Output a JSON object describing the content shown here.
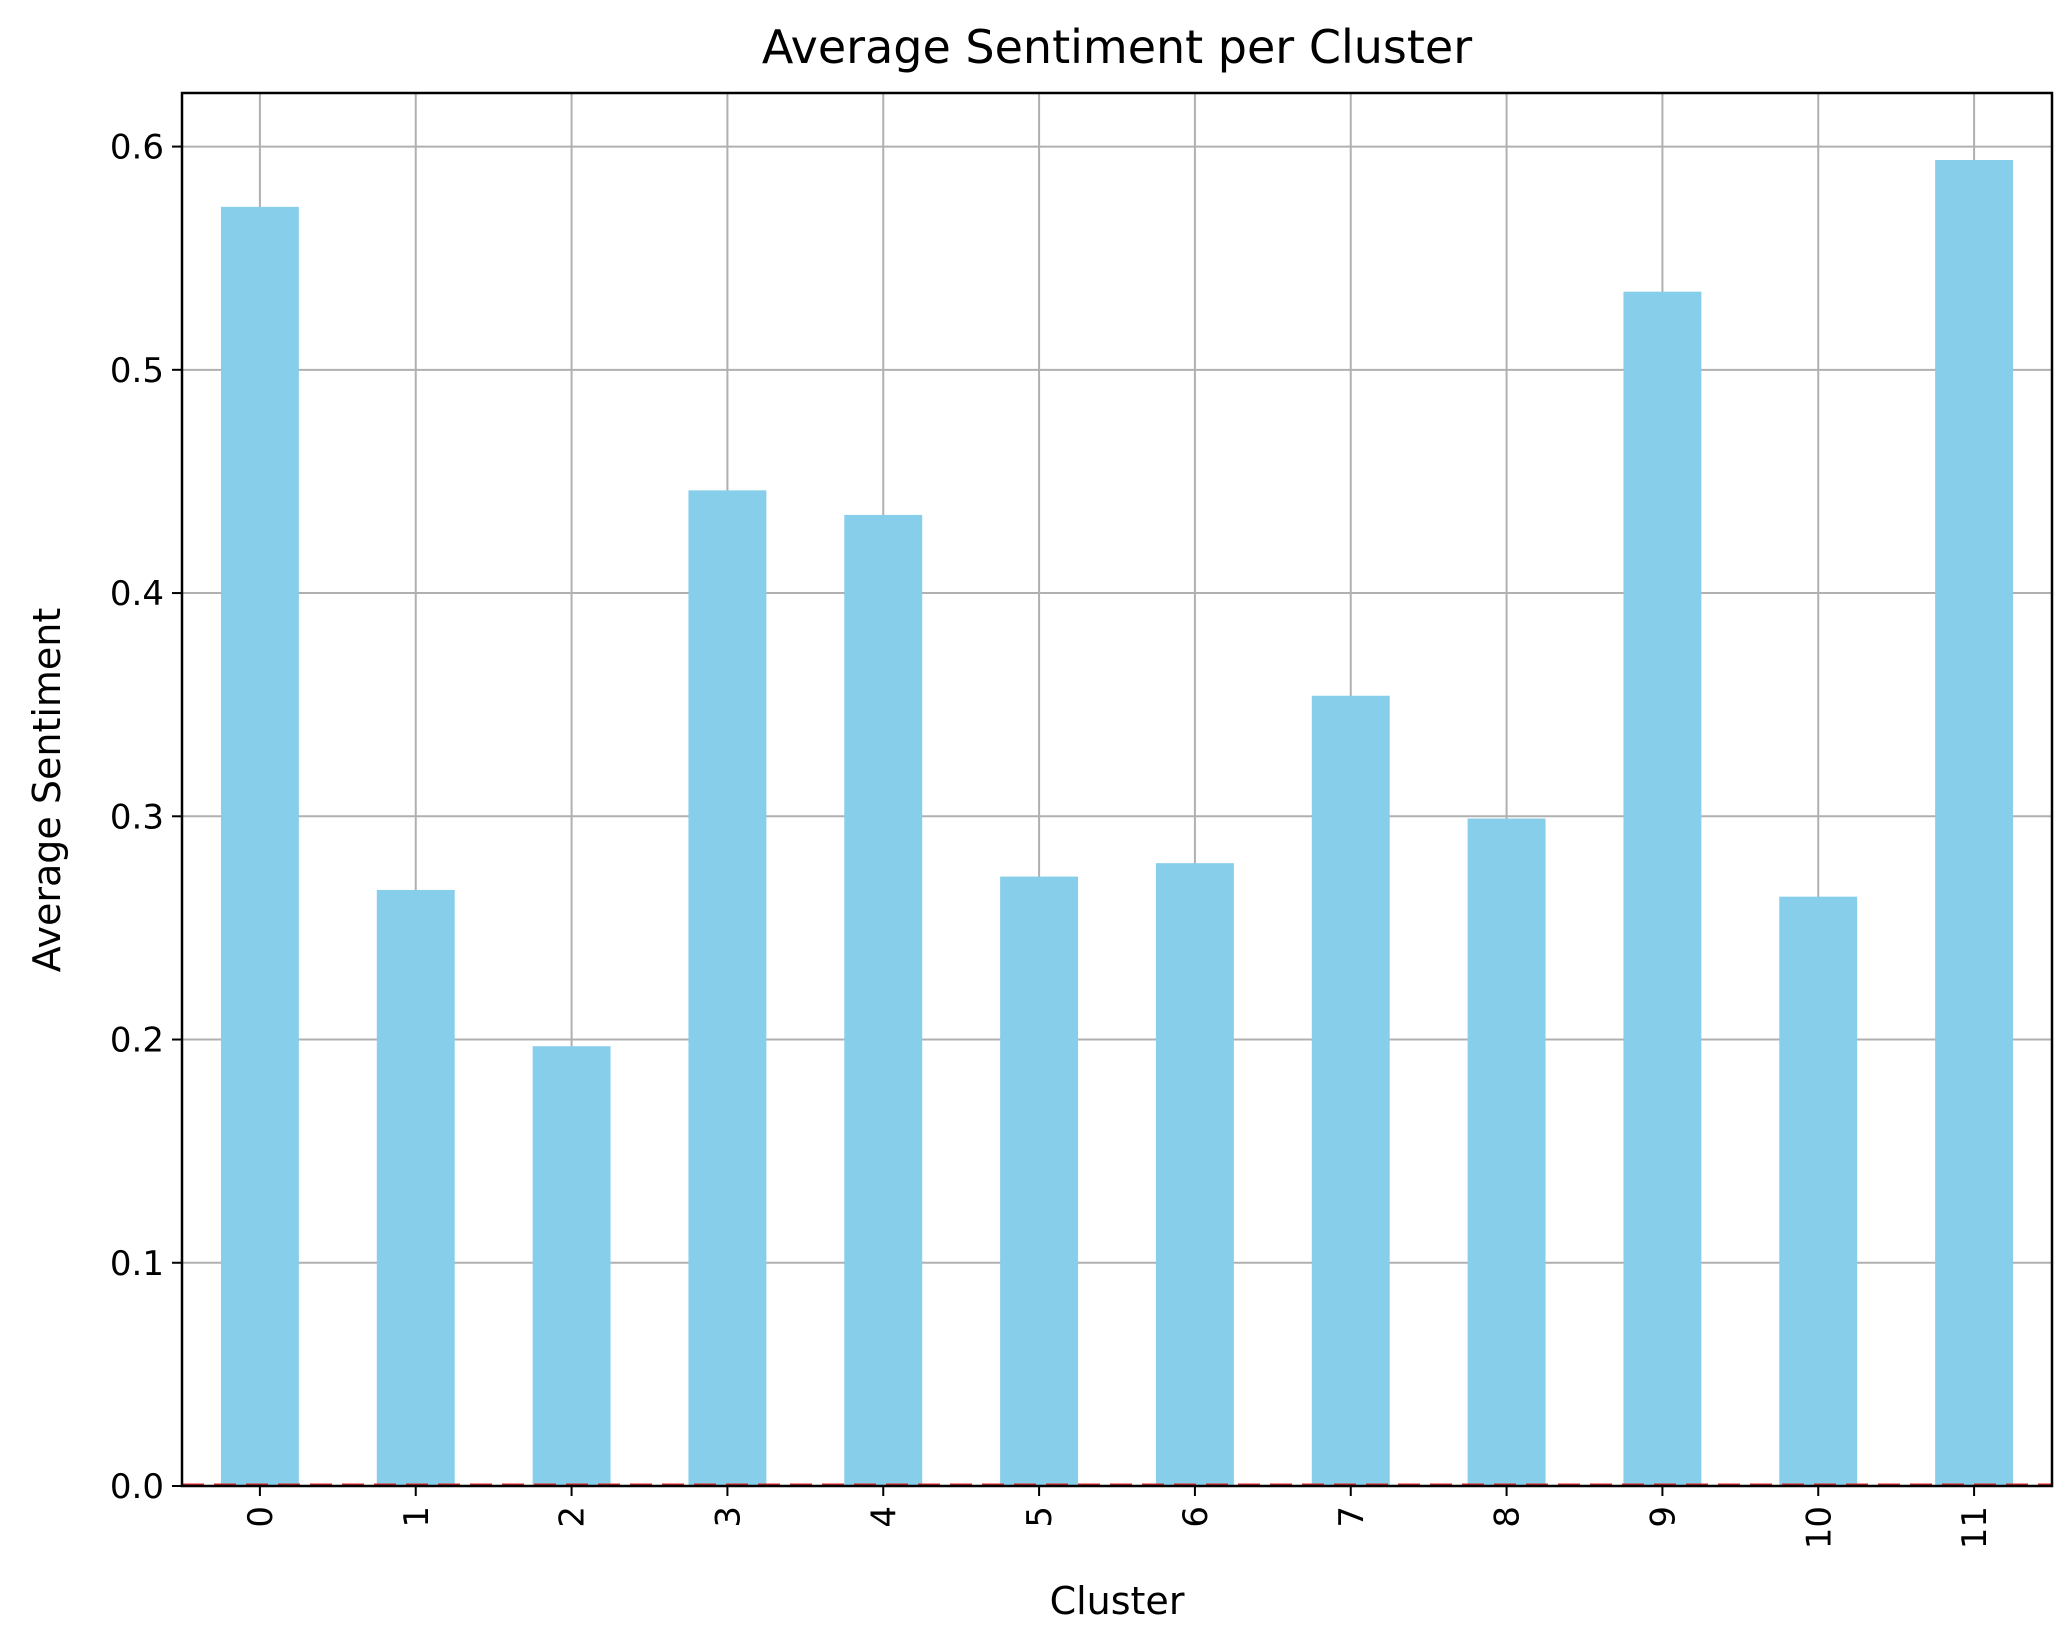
{
  "chart_data": {
    "type": "bar",
    "title": "Average Sentiment per Cluster",
    "xlabel": "Cluster",
    "ylabel": "Average Sentiment",
    "categories": [
      "0",
      "1",
      "2",
      "3",
      "4",
      "5",
      "6",
      "7",
      "8",
      "9",
      "10",
      "11"
    ],
    "values": [
      0.573,
      0.267,
      0.197,
      0.446,
      0.435,
      0.273,
      0.279,
      0.354,
      0.299,
      0.535,
      0.264,
      0.594
    ],
    "ylim": [
      0,
      0.624
    ],
    "yticks": [
      "0.0",
      "0.1",
      "0.2",
      "0.3",
      "0.4",
      "0.5",
      "0.6"
    ],
    "x_tick_rotation": 90,
    "grid": true,
    "reference_line": {
      "y": 0,
      "style": "dashed"
    },
    "colors": {
      "bar": "#87CEEB",
      "grid": "#b0b0b0",
      "reference_line": "#d62728",
      "axes": "#000000"
    }
  }
}
